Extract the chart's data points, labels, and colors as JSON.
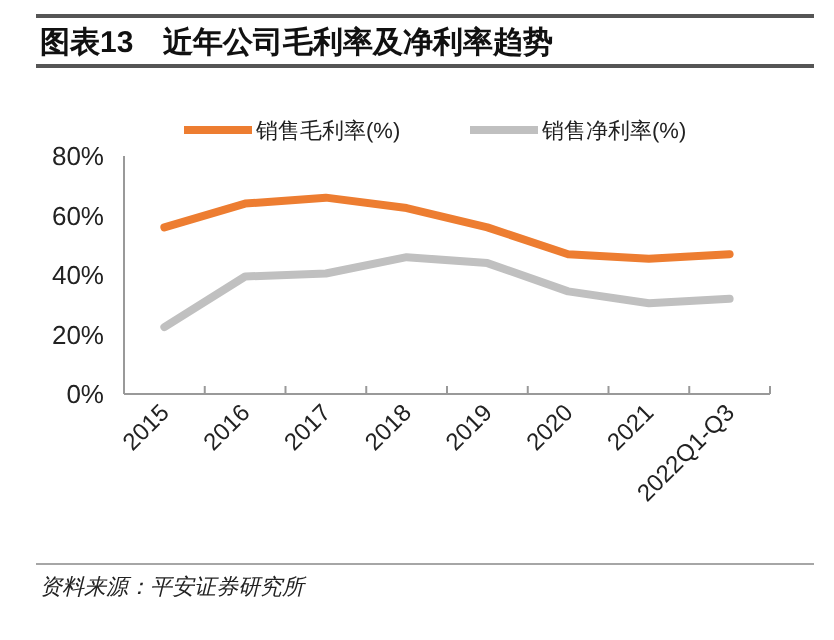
{
  "chart_data": {
    "type": "line",
    "title": "图表13　近年公司毛利率及净利率趋势",
    "categories": [
      "2015",
      "2016",
      "2017",
      "2018",
      "2019",
      "2020",
      "2021",
      "2022Q1-Q3"
    ],
    "series": [
      {
        "name": "销售毛利率(%)",
        "color": "#ed7d31",
        "values": [
          56,
          64,
          66,
          62.5,
          56,
          47,
          45.5,
          47
        ]
      },
      {
        "name": "销售净利率(%)",
        "color": "#c0c0c0",
        "values": [
          22.5,
          39.5,
          40.5,
          46,
          44,
          34.5,
          30.5,
          32
        ]
      }
    ],
    "ylim": [
      0,
      80
    ],
    "yticks": [
      {
        "value": 0,
        "label": "0%"
      },
      {
        "value": 20,
        "label": "20%"
      },
      {
        "value": 40,
        "label": "40%"
      },
      {
        "value": 60,
        "label": "60%"
      },
      {
        "value": 80,
        "label": "80%"
      }
    ],
    "grid": false,
    "legend": "top",
    "marker": "none",
    "line_style": "solid",
    "annotations": [
      "资料来源：平安证券研究所"
    ]
  }
}
